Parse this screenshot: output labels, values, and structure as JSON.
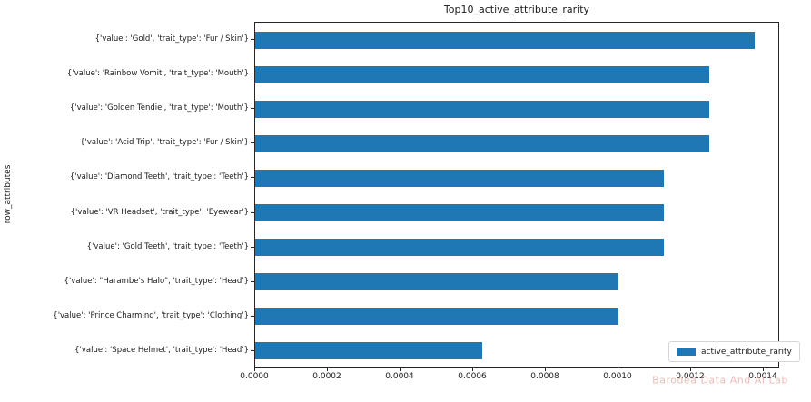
{
  "figure": {
    "title": "Top10_active_attribute_rarity",
    "y_axis_label": "row_attributes",
    "legend_label": "active_attribute_rarity",
    "watermark": "Barodea Data And AI Lab"
  },
  "colors": {
    "bar": "#1f77b4",
    "spine": "#262626",
    "legend_border": "#d5d5d5",
    "watermark_pink": "#e4a6a0",
    "background": "#ffffff"
  },
  "chart_data": {
    "type": "bar",
    "orientation": "horizontal",
    "title": "Top10_active_attribute_rarity",
    "xlabel": "",
    "ylabel": "row_attributes",
    "legend_entries": [
      "active_attribute_rarity"
    ],
    "legend_position": "lower right",
    "grid": false,
    "xlim": [
      0.0,
      0.001445
    ],
    "xticks": [
      {
        "value": 0.0,
        "label": "0.0000"
      },
      {
        "value": 0.0002,
        "label": "0.0002"
      },
      {
        "value": 0.0004,
        "label": "0.0004"
      },
      {
        "value": 0.0006,
        "label": "0.0006"
      },
      {
        "value": 0.0008,
        "label": "0.0008"
      },
      {
        "value": 0.001,
        "label": "0.0010"
      },
      {
        "value": 0.0012,
        "label": "0.0012"
      },
      {
        "value": 0.0014,
        "label": "0.0014"
      }
    ],
    "categories": [
      "{'value': 'Gold', 'trait_type': 'Fur / Skin'}",
      "{'value': 'Rainbow Vomit', 'trait_type': 'Mouth'}",
      "{'value': 'Golden Tendie', 'trait_type': 'Mouth'}",
      "{'value': 'Acid Trip', 'trait_type': 'Fur / Skin'}",
      "{'value': 'Diamond Teeth', 'trait_type': 'Teeth'}",
      "{'value': 'VR Headset', 'trait_type': 'Eyewear'}",
      "{'value': 'Gold Teeth', 'trait_type': 'Teeth'}",
      "{'value': \"Harambe's Halo\", 'trait_type': 'Head'}",
      "{'value': 'Prince Charming', 'trait_type': 'Clothing'}",
      "{'value': 'Space Helmet', 'trait_type': 'Head'}"
    ],
    "values": [
      0.001375,
      0.00125,
      0.00125,
      0.00125,
      0.001125,
      0.001125,
      0.001125,
      0.001,
      0.001,
      0.000625
    ]
  }
}
